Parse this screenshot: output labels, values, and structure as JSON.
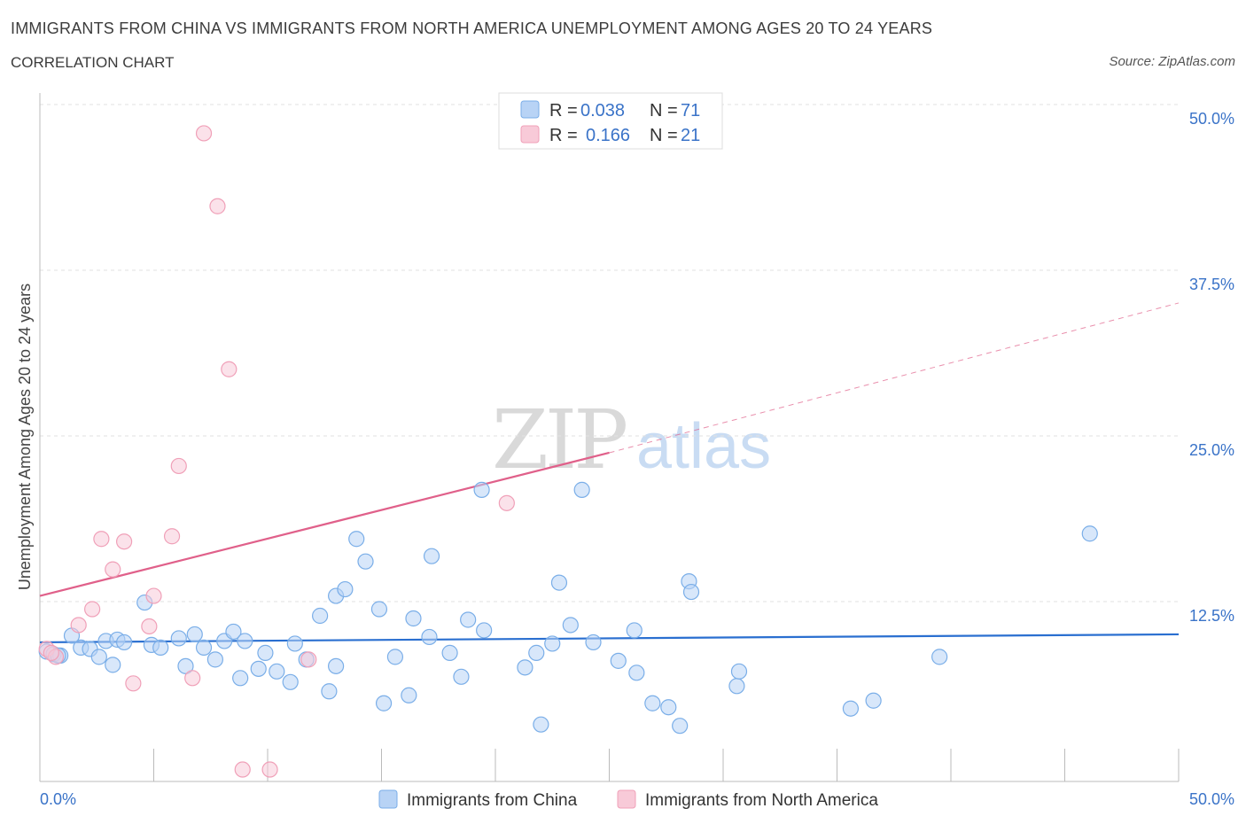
{
  "header": {
    "title": "IMMIGRANTS FROM CHINA VS IMMIGRANTS FROM NORTH AMERICA UNEMPLOYMENT AMONG AGES 20 TO 24 YEARS",
    "subtitle": "CORRELATION CHART",
    "source": "Source: ZipAtlas.com"
  },
  "colors": {
    "china": "#7aaee8",
    "china_fill": "#b8d3f5",
    "china_line": "#2a6fd0",
    "na": "#f0a0b8",
    "na_fill": "#f8cad8",
    "na_line": "#e0608a"
  },
  "legend": {
    "china": {
      "r_label": "R =",
      "r": "0.038",
      "n_label": "N =",
      "n": "71"
    },
    "na": {
      "r_label": "R =",
      "r": "0.166",
      "n_label": "N =",
      "n": "21"
    }
  },
  "chart_data": {
    "type": "scatter",
    "title": "IMMIGRANTS FROM CHINA VS IMMIGRANTS FROM NORTH AMERICA UNEMPLOYMENT AMONG AGES 20 TO 24 YEARS",
    "ylabel": "Unemployment Among Ages 20 to 24 years",
    "xlim": [
      0,
      50
    ],
    "ylim": [
      0,
      50
    ],
    "x_ticks": [
      "0.0%",
      "50.0%"
    ],
    "y_ticks": [
      {
        "value": 12.5,
        "label": "12.5%"
      },
      {
        "value": 25,
        "label": "25.0%"
      },
      {
        "value": 37.5,
        "label": "37.5%"
      },
      {
        "value": 50,
        "label": "50.0%"
      }
    ],
    "grid": true,
    "watermark": "ZIPatlas",
    "series": [
      {
        "name": "Immigrants from China",
        "key": "china",
        "trend": {
          "x0": 0,
          "y0": 10.5,
          "x1": 50,
          "y1": 11.1
        },
        "points": [
          [
            0.3,
            9.8
          ],
          [
            0.6,
            9.6
          ],
          [
            0.9,
            9.5
          ],
          [
            1.4,
            11.0
          ],
          [
            1.8,
            10.1
          ],
          [
            2.2,
            10.0
          ],
          [
            2.6,
            9.4
          ],
          [
            2.9,
            10.6
          ],
          [
            3.2,
            8.8
          ],
          [
            3.4,
            10.7
          ],
          [
            3.7,
            10.5
          ],
          [
            4.6,
            13.5
          ],
          [
            4.9,
            10.3
          ],
          [
            5.3,
            10.1
          ],
          [
            6.1,
            10.8
          ],
          [
            6.4,
            8.7
          ],
          [
            6.8,
            11.1
          ],
          [
            7.2,
            10.1
          ],
          [
            7.7,
            9.2
          ],
          [
            8.1,
            10.6
          ],
          [
            8.5,
            11.3
          ],
          [
            8.8,
            7.8
          ],
          [
            9.0,
            10.6
          ],
          [
            9.6,
            8.5
          ],
          [
            9.9,
            9.7
          ],
          [
            10.4,
            8.3
          ],
          [
            11.0,
            7.5
          ],
          [
            11.2,
            10.4
          ],
          [
            11.7,
            9.2
          ],
          [
            12.3,
            12.5
          ],
          [
            12.7,
            6.8
          ],
          [
            13.0,
            8.7
          ],
          [
            13.0,
            14.0
          ],
          [
            13.4,
            14.5
          ],
          [
            13.9,
            18.3
          ],
          [
            14.3,
            16.6
          ],
          [
            14.9,
            13.0
          ],
          [
            15.1,
            5.9
          ],
          [
            15.6,
            9.4
          ],
          [
            16.2,
            6.5
          ],
          [
            16.4,
            12.3
          ],
          [
            17.1,
            10.9
          ],
          [
            17.2,
            17.0
          ],
          [
            18.0,
            9.7
          ],
          [
            18.5,
            7.9
          ],
          [
            18.8,
            12.2
          ],
          [
            19.4,
            22.0
          ],
          [
            19.5,
            11.4
          ],
          [
            21.3,
            8.6
          ],
          [
            21.8,
            9.7
          ],
          [
            22.0,
            4.3
          ],
          [
            22.5,
            10.4
          ],
          [
            22.8,
            15.0
          ],
          [
            23.3,
            11.8
          ],
          [
            23.8,
            22.0
          ],
          [
            24.3,
            10.5
          ],
          [
            25.4,
            9.1
          ],
          [
            26.1,
            11.4
          ],
          [
            26.2,
            8.2
          ],
          [
            26.9,
            5.9
          ],
          [
            27.6,
            5.6
          ],
          [
            28.1,
            4.2
          ],
          [
            28.5,
            15.1
          ],
          [
            28.6,
            14.3
          ],
          [
            30.6,
            7.2
          ],
          [
            30.7,
            8.3
          ],
          [
            35.6,
            5.5
          ],
          [
            36.6,
            6.1
          ],
          [
            39.5,
            9.4
          ],
          [
            46.1,
            18.7
          ],
          [
            0.8,
            9.5
          ]
        ]
      },
      {
        "name": "Immigrants from North America",
        "key": "na",
        "trend": {
          "x0": 0,
          "y0": 14.0,
          "x1": 25,
          "y1": 24.8,
          "dash_x1": 50,
          "dash_y1": 36.1
        },
        "points": [
          [
            0.3,
            10.0
          ],
          [
            0.7,
            9.4
          ],
          [
            1.7,
            11.8
          ],
          [
            2.3,
            13.0
          ],
          [
            2.7,
            18.3
          ],
          [
            3.2,
            16.0
          ],
          [
            3.7,
            18.1
          ],
          [
            4.1,
            7.4
          ],
          [
            4.8,
            11.7
          ],
          [
            5.0,
            14.0
          ],
          [
            5.8,
            18.5
          ],
          [
            6.1,
            23.8
          ],
          [
            6.7,
            7.8
          ],
          [
            7.2,
            48.9
          ],
          [
            7.8,
            43.4
          ],
          [
            8.3,
            31.1
          ],
          [
            8.9,
            0.9
          ],
          [
            10.1,
            0.9
          ],
          [
            11.8,
            9.2
          ],
          [
            20.5,
            21.0
          ],
          [
            0.5,
            9.7
          ]
        ]
      }
    ]
  },
  "bottom_legend": {
    "china": "Immigrants from China",
    "na": "Immigrants from North America"
  }
}
